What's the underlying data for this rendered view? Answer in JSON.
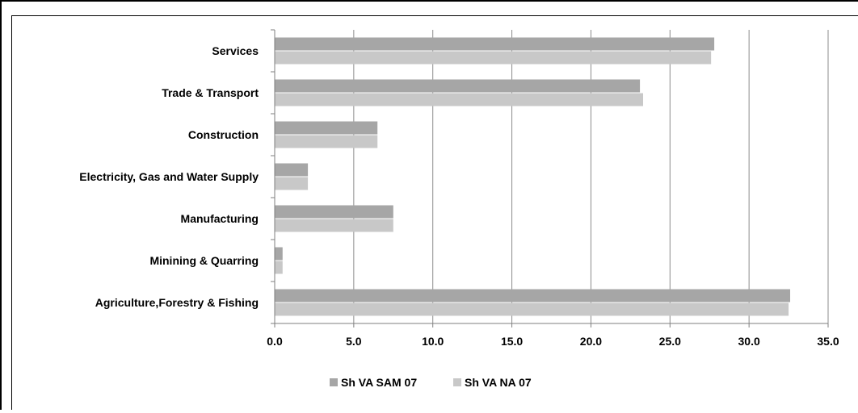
{
  "chart_data": {
    "type": "bar",
    "orientation": "horizontal",
    "categories": [
      "Agriculture,Forestry & Fishing",
      "Minining & Quarring",
      "Manufacturing",
      "Electricity, Gas and Water Supply",
      "Construction",
      "Trade & Transport",
      "Services"
    ],
    "series": [
      {
        "name": "Sh VA SAM 07",
        "color": "#a6a6a6",
        "values": [
          32.6,
          0.5,
          7.5,
          2.1,
          6.5,
          23.1,
          27.8
        ]
      },
      {
        "name": "Sh VA NA 07",
        "color": "#c8c8c8",
        "values": [
          32.5,
          0.5,
          7.5,
          2.1,
          6.5,
          23.3,
          27.6
        ]
      }
    ],
    "xlim": [
      0,
      35
    ],
    "xticks": [
      0,
      5,
      10,
      15,
      20,
      25,
      30,
      35
    ],
    "xtick_labels": [
      "0.0",
      "5.0",
      "10.0",
      "15.0",
      "20.0",
      "25.0",
      "30.0",
      "35.0"
    ],
    "grid": "vertical",
    "legend": "bottom"
  }
}
